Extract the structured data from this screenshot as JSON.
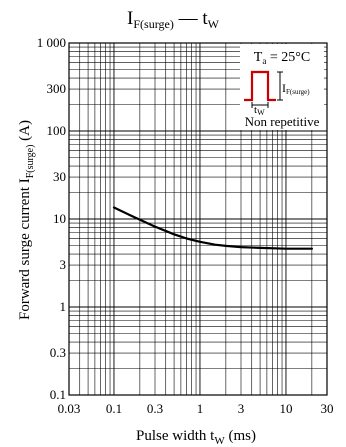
{
  "chart_data": {
    "type": "line",
    "title": {
      "main": "I",
      "main_sub": "F(surge)",
      "dash": " — ",
      "var": "t",
      "var_sub": "W"
    },
    "xlabel": {
      "text": "Pulse width  t",
      "sub": "W",
      "unit": "  (ms)"
    },
    "ylabel": {
      "text": "Forward surge current  I",
      "sub": "F(surge)",
      "unit": "   (A)"
    },
    "x_scale": "log",
    "y_scale": "log",
    "xlim": [
      0.03,
      30
    ],
    "ylim": [
      0.1,
      1000
    ],
    "x_ticks": [
      {
        "value": 0.03,
        "label": "0.03"
      },
      {
        "value": 0.1,
        "label": "0.1"
      },
      {
        "value": 0.3,
        "label": "0.3"
      },
      {
        "value": 1,
        "label": "1"
      },
      {
        "value": 3,
        "label": "3"
      },
      {
        "value": 10,
        "label": "10"
      },
      {
        "value": 30,
        "label": "30"
      }
    ],
    "y_ticks": [
      {
        "value": 0.1,
        "label": "0.1"
      },
      {
        "value": 0.3,
        "label": "0.3"
      },
      {
        "value": 1,
        "label": "1"
      },
      {
        "value": 3,
        "label": "3"
      },
      {
        "value": 10,
        "label": "10"
      },
      {
        "value": 30,
        "label": "30"
      },
      {
        "value": 100,
        "label": "100"
      },
      {
        "value": 300,
        "label": "300"
      },
      {
        "value": 1000,
        "label": "1 000"
      }
    ],
    "grid": true,
    "series": [
      {
        "x": [
          0.1,
          0.15,
          0.2,
          0.3,
          0.5,
          0.7,
          1,
          1.5,
          2,
          3,
          5,
          10,
          20
        ],
        "y": [
          13.5,
          11.2,
          9.8,
          8.2,
          6.7,
          6.0,
          5.5,
          5.1,
          4.95,
          4.8,
          4.7,
          4.6,
          4.6
        ]
      }
    ],
    "inset": {
      "condition": "T",
      "condition_sub": "a",
      "condition_value": " = 25°C",
      "pulse_label": "I",
      "pulse_label_sub": "F(surge)",
      "width_label": "t",
      "width_label_sub": "W",
      "note": "Non repetitive"
    }
  },
  "colors": {
    "background": "#ffffff",
    "foreground": "#000000",
    "pulse": "#cc0000"
  }
}
